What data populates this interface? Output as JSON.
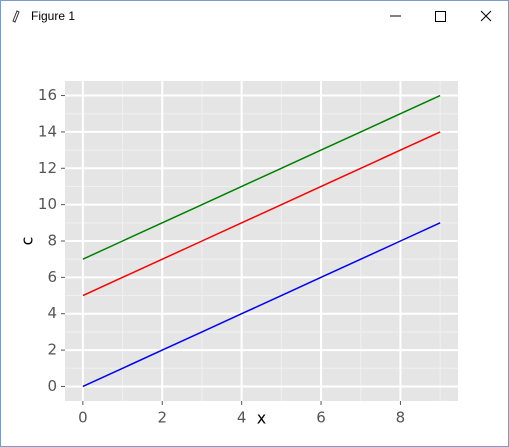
{
  "window": {
    "title": "Figure 1"
  },
  "chart_data": {
    "type": "line",
    "xlabel": "x",
    "ylabel": "c",
    "x": [
      0,
      1,
      2,
      3,
      4,
      5,
      6,
      7,
      8,
      9
    ],
    "series": [
      {
        "color": "#0000ff",
        "values": [
          0,
          1,
          2,
          3,
          4,
          5,
          6,
          7,
          8,
          9
        ]
      },
      {
        "color": "#ff0000",
        "values": [
          5,
          6,
          7,
          8,
          9,
          10,
          11,
          12,
          13,
          14
        ]
      },
      {
        "color": "#008000",
        "values": [
          7,
          8,
          9,
          10,
          11,
          12,
          13,
          14,
          15,
          16
        ]
      }
    ],
    "xlim": [
      -0.45,
      9.45
    ],
    "ylim": [
      -0.8,
      16.8
    ],
    "xticks": [
      0,
      2,
      4,
      6,
      8
    ],
    "yticks": [
      0,
      2,
      4,
      6,
      8,
      10,
      12,
      14,
      16
    ],
    "xminorticks": [
      1,
      3,
      5,
      7,
      9
    ],
    "yminorticks": [
      1,
      3,
      5,
      7,
      9,
      11,
      13,
      15
    ],
    "grid": true
  }
}
